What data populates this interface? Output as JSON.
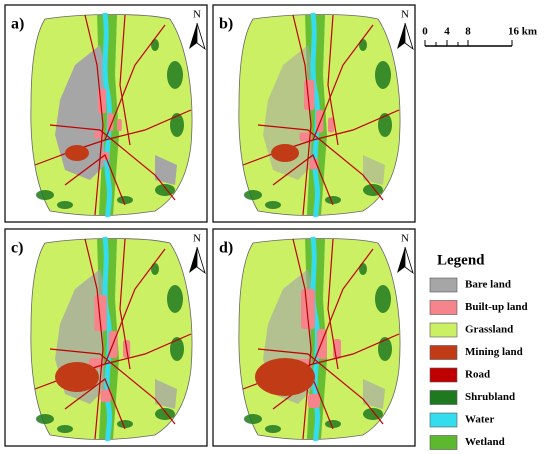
{
  "panels": [
    {
      "label": "a)",
      "north": "N"
    },
    {
      "label": "b)",
      "north": "N"
    },
    {
      "label": "c)",
      "north": "N"
    },
    {
      "label": "d)",
      "north": "N"
    }
  ],
  "scale_bar": {
    "labels": [
      "0",
      "4",
      "8",
      "16 km"
    ]
  },
  "legend": {
    "title": "Legend",
    "items": [
      {
        "label": "Bare land",
        "color": "#a6a6a6"
      },
      {
        "label": "Built-up land",
        "color": "#f5858b"
      },
      {
        "label": "Grassland",
        "color": "#ccf064"
      },
      {
        "label": "Mining land",
        "color": "#c23b17"
      },
      {
        "label": "Road",
        "color": "#c00000"
      },
      {
        "label": "Shrubland",
        "color": "#1f7a1f"
      },
      {
        "label": "Water",
        "color": "#33ddee"
      },
      {
        "label": "Wetland",
        "color": "#5cb82e"
      }
    ]
  }
}
